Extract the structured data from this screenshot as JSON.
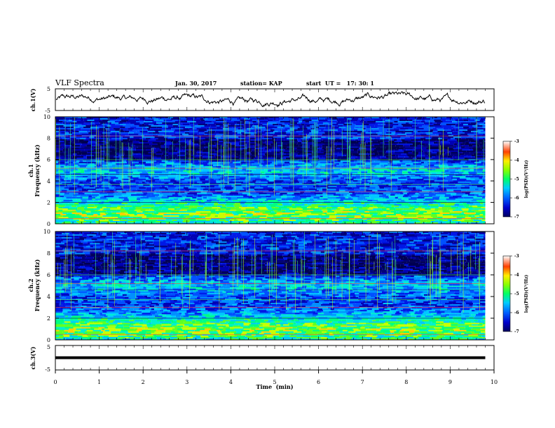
{
  "header": {
    "title": "VLF Spectra",
    "date": "Jan. 30, 2017",
    "station": "station= KAP",
    "start": "start  UT =   17: 30: 1"
  },
  "chart_data": [
    {
      "type": "line",
      "panel": "ch1-waveform",
      "ylabel": "ch.1(V)",
      "ylim": [
        -5,
        5
      ],
      "y_ticks": [
        "5",
        "-5"
      ],
      "x_range": [
        0,
        9.8
      ],
      "color": "#000000"
    },
    {
      "type": "heatmap",
      "panel": "ch1-spectrogram",
      "ylabel": "ch.1\nFrequency (kHz)",
      "ylim": [
        0,
        10
      ],
      "y_ticks": [
        "0",
        "2",
        "4",
        "6",
        "8",
        "10"
      ],
      "x_range": [
        0,
        9.8
      ],
      "colorbar": {
        "label": "log(PSD)(V²/Hz)",
        "range": [
          -7,
          -3
        ],
        "ticks": [
          "-3",
          "-4",
          "-5",
          "-6",
          "-7"
        ]
      }
    },
    {
      "type": "heatmap",
      "panel": "ch2-spectrogram",
      "ylabel": "ch.2\nFrequency (kHz)",
      "ylim": [
        0,
        10
      ],
      "y_ticks": [
        "0",
        "2",
        "4",
        "6",
        "8",
        "10"
      ],
      "x_range": [
        0,
        9.8
      ],
      "colorbar": {
        "label": "log(PSD)(V²/Hz)",
        "range": [
          -7,
          -3
        ],
        "ticks": [
          "-3",
          "-4",
          "-5",
          "-6",
          "-7"
        ]
      }
    },
    {
      "type": "line",
      "panel": "ch3-waveform",
      "ylabel": "ch.3(V)",
      "ylim": [
        -5,
        5
      ],
      "y_ticks": [
        "5",
        "-5"
      ],
      "x_range": [
        0,
        9.8
      ],
      "values": [
        [
          0,
          0.0
        ],
        [
          9.8,
          0.0
        ]
      ],
      "color": "#000000"
    }
  ],
  "x_axis": {
    "label": "Time  (min)",
    "range": [
      0,
      10
    ],
    "ticks": [
      "0",
      "1",
      "2",
      "3",
      "4",
      "5",
      "6",
      "7",
      "8",
      "9",
      "10"
    ]
  }
}
